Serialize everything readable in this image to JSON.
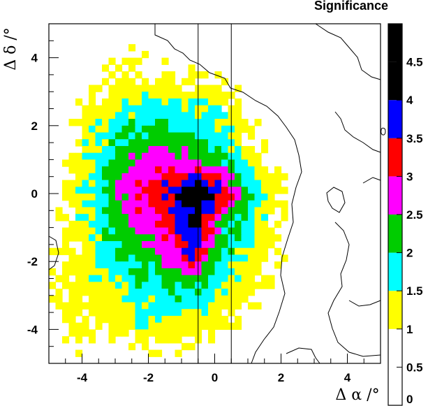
{
  "chart_data": {
    "type": "heatmap",
    "title": "Significance",
    "xlabel": "Δ α /°",
    "ylabel": "Δ δ /°",
    "xlim": [
      -5,
      5
    ],
    "ylim": [
      -5,
      5
    ],
    "x_ticks": [
      "-4",
      "-2",
      "0",
      "2",
      "4"
    ],
    "y_ticks": [
      "-4",
      "-2",
      "0",
      "2",
      "4"
    ],
    "x_tick_values": [
      -4,
      -2,
      0,
      2,
      4
    ],
    "y_tick_values": [
      -4,
      -2,
      0,
      2,
      4
    ],
    "vertical_lines": [
      -0.5,
      0.5
    ],
    "colorbar": {
      "ticks": [
        "0",
        "0.5",
        "1",
        "1.5",
        "2",
        "2.5",
        "3",
        "3.5",
        "4",
        "4.5"
      ],
      "levels": [
        0,
        0.5,
        1,
        1.5,
        2,
        2.5,
        3,
        3.5,
        4,
        4.5,
        5
      ],
      "colors": [
        "#ffffff",
        "#ffffff",
        "#ffff00",
        "#00ffff",
        "#00cc00",
        "#ff00ff",
        "#ff0000",
        "#0000ff",
        "#000000",
        "#000000"
      ]
    },
    "peak": {
      "x": -0.4,
      "y": 0.0,
      "value": 4.3
    }
  }
}
